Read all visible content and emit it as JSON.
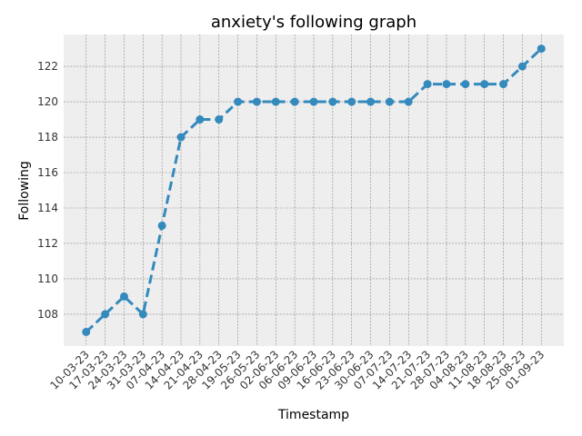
{
  "chart_data": {
    "type": "line",
    "title": "anxiety's following graph",
    "xlabel": "Timestamp",
    "ylabel": "Following",
    "categories": [
      "10-03-23",
      "17-03-23",
      "24-03-23",
      "31-03-23",
      "07-04-23",
      "14-04-23",
      "21-04-23",
      "28-04-23",
      "19-05-23",
      "26-05-23",
      "02-06-23",
      "06-06-23",
      "09-06-23",
      "16-06-23",
      "23-06-23",
      "30-06-23",
      "07-07-23",
      "14-07-23",
      "21-07-23",
      "28-07-23",
      "04-08-23",
      "11-08-23",
      "18-08-23",
      "25-08-23",
      "01-09-23"
    ],
    "series": [
      {
        "values": [
          107,
          108,
          109,
          108,
          113,
          118,
          119,
          119,
          120,
          120,
          120,
          120,
          120,
          120,
          120,
          120,
          120,
          120,
          121,
          121,
          121,
          121,
          121,
          122,
          123
        ]
      }
    ],
    "yticks": [
      108,
      110,
      112,
      114,
      116,
      118,
      120,
      122
    ],
    "ylim": [
      106.2,
      123.8
    ],
    "grid": true,
    "line_style": "dashed",
    "marker": "circle",
    "colors": {
      "line": "#348abd",
      "plot_bg": "#eeeeee",
      "grid": "#888888"
    }
  }
}
